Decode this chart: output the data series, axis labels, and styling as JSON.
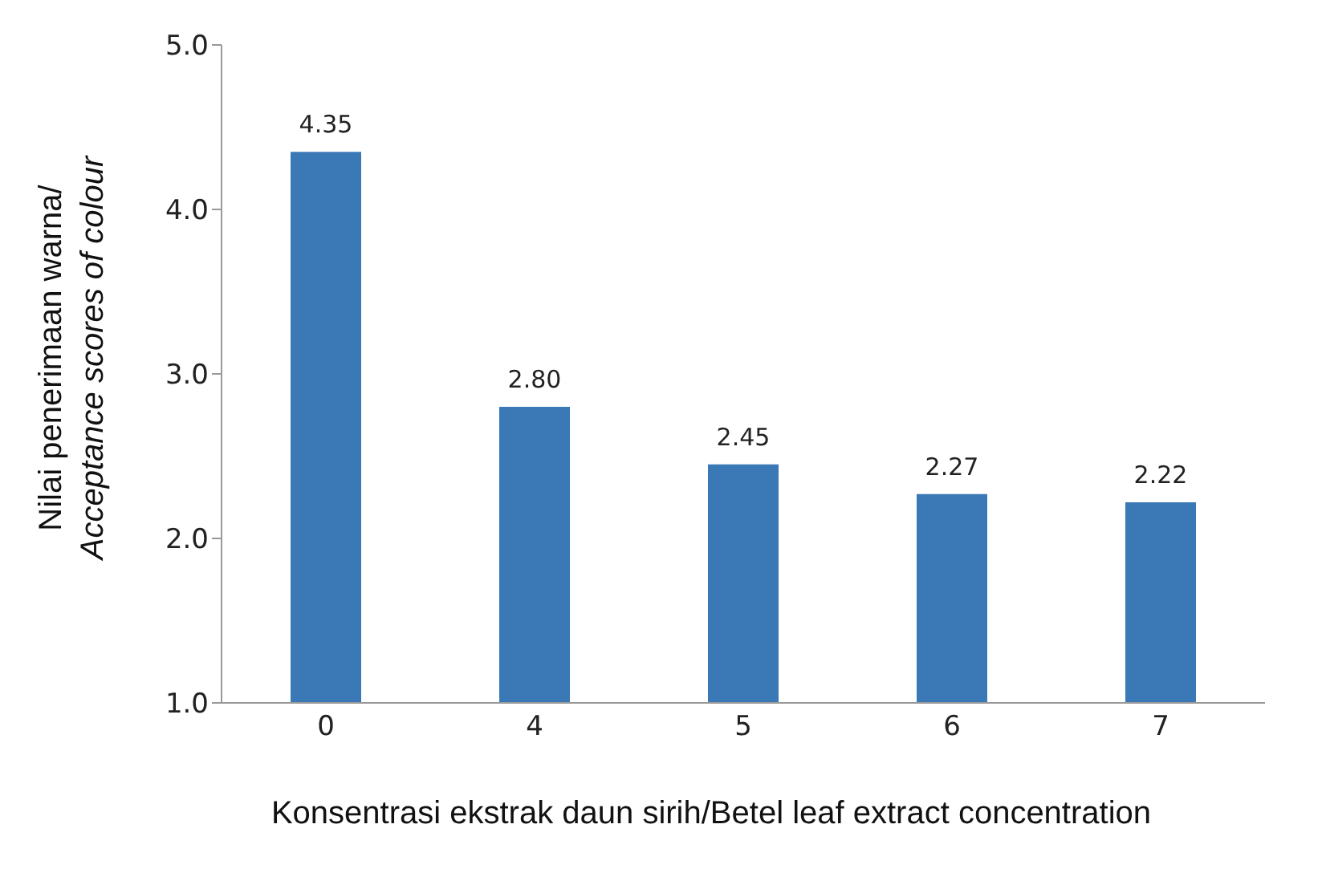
{
  "chart_data": {
    "type": "bar",
    "ylabel": "Nilai penerimaan warna/Acceptance scores of colour",
    "xlabel": "Konsentrasi ekstrak daun sirih/Betel leaf extract concentration",
    "categories": [
      "0",
      "4",
      "5",
      "6",
      "7"
    ],
    "values": [
      4.35,
      2.8,
      2.45,
      2.27,
      2.22
    ],
    "value_labels": [
      "4.35",
      "2.80",
      "2.45",
      "2.27",
      "2.22"
    ],
    "color": "#3b78b6",
    "ylim": [
      1,
      5
    ],
    "yticks": [
      {
        "value": 1,
        "label": "1.0"
      },
      {
        "value": 2,
        "label": "2.0"
      },
      {
        "value": 3,
        "label": "3.0"
      },
      {
        "value": 4,
        "label": "4.0"
      },
      {
        "value": 5,
        "label": "5.0"
      }
    ],
    "grid": false
  }
}
